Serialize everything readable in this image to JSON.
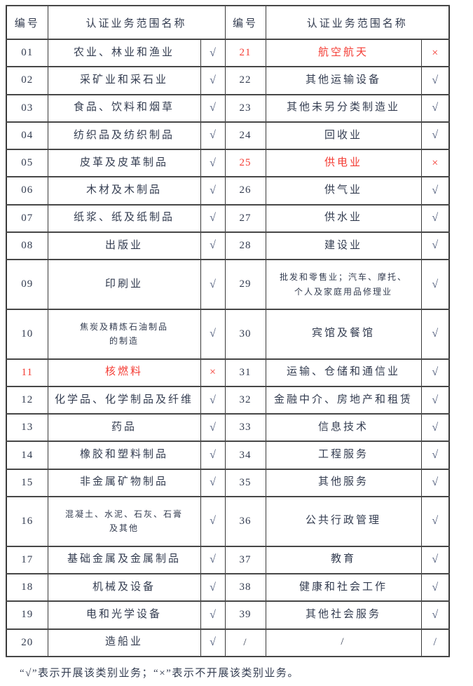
{
  "table": {
    "header": {
      "number": "编号",
      "scope": "认证业务范围名称"
    },
    "left_rows": [
      {
        "num": "01",
        "name": "农业、林业和渔业",
        "mark": "√",
        "red": false
      },
      {
        "num": "02",
        "name": "采矿业和采石业",
        "mark": "√",
        "red": false
      },
      {
        "num": "03",
        "name": "食品、饮料和烟草",
        "mark": "√",
        "red": false
      },
      {
        "num": "04",
        "name": "纺织品及纺织制品",
        "mark": "√",
        "red": false
      },
      {
        "num": "05",
        "name": "皮革及皮革制品",
        "mark": "√",
        "red": false
      },
      {
        "num": "06",
        "name": "木材及木制品",
        "mark": "√",
        "red": false
      },
      {
        "num": "07",
        "name": "纸浆、纸及纸制品",
        "mark": "√",
        "red": false
      },
      {
        "num": "08",
        "name": "出版业",
        "mark": "√",
        "red": false
      },
      {
        "num": "09",
        "name": "印刷业",
        "mark": "√",
        "red": false
      },
      {
        "num": "10",
        "name": "焦炭及精炼石油制品\n的制造",
        "mark": "√",
        "red": false
      },
      {
        "num": "11",
        "name": "核燃料",
        "mark": "×",
        "red": true
      },
      {
        "num": "12",
        "name": "化学品、化学制品及纤维",
        "mark": "√",
        "red": false
      },
      {
        "num": "13",
        "name": "药品",
        "mark": "√",
        "red": false
      },
      {
        "num": "14",
        "name": "橡胶和塑料制品",
        "mark": "√",
        "red": false
      },
      {
        "num": "15",
        "name": "非金属矿物制品",
        "mark": "√",
        "red": false
      },
      {
        "num": "16",
        "name": "混凝土、水泥、石灰、石膏\n及其他",
        "mark": "√",
        "red": false
      },
      {
        "num": "17",
        "name": "基础金属及金属制品",
        "mark": "√",
        "red": false
      },
      {
        "num": "18",
        "name": "机械及设备",
        "mark": "√",
        "red": false
      },
      {
        "num": "19",
        "name": "电和光学设备",
        "mark": "√",
        "red": false
      },
      {
        "num": "20",
        "name": "造船业",
        "mark": "√",
        "red": false
      }
    ],
    "right_rows": [
      {
        "num": "21",
        "name": "航空航天",
        "mark": "×",
        "red": true
      },
      {
        "num": "22",
        "name": "其他运输设备",
        "mark": "√",
        "red": false
      },
      {
        "num": "23",
        "name": "其他未另分类制造业",
        "mark": "√",
        "red": false
      },
      {
        "num": "24",
        "name": "回收业",
        "mark": "√",
        "red": false
      },
      {
        "num": "25",
        "name": "供电业",
        "mark": "×",
        "red": true
      },
      {
        "num": "26",
        "name": "供气业",
        "mark": "√",
        "red": false
      },
      {
        "num": "27",
        "name": "供水业",
        "mark": "√",
        "red": false
      },
      {
        "num": "28",
        "name": "建设业",
        "mark": "√",
        "red": false
      },
      {
        "num": "29",
        "name": "批发和零售业；汽车、摩托、\n个人及家庭用品修理业",
        "mark": "√",
        "red": false
      },
      {
        "num": "30",
        "name": "宾馆及餐馆",
        "mark": "√",
        "red": false
      },
      {
        "num": "31",
        "name": "运输、仓储和通信业",
        "mark": "√",
        "red": false
      },
      {
        "num": "32",
        "name": "金融中介、房地产和租赁",
        "mark": "√",
        "red": false
      },
      {
        "num": "33",
        "name": "信息技术",
        "mark": "√",
        "red": false
      },
      {
        "num": "34",
        "name": "工程服务",
        "mark": "√",
        "red": false
      },
      {
        "num": "35",
        "name": "其他服务",
        "mark": "√",
        "red": false
      },
      {
        "num": "36",
        "name": "公共行政管理",
        "mark": "√",
        "red": false
      },
      {
        "num": "37",
        "name": "教育",
        "mark": "√",
        "red": false
      },
      {
        "num": "38",
        "name": "健康和社会工作",
        "mark": "√",
        "red": false
      },
      {
        "num": "39",
        "name": "其他社会服务",
        "mark": "√",
        "red": false
      },
      {
        "num": "/",
        "name": "/",
        "mark": "/",
        "red": false
      }
    ]
  },
  "footnote": "“√”表示开展该类别业务；“×”表示不开展该类别业务。",
  "colors": {
    "text": "#333c50",
    "red_highlight": "#f43b33",
    "check_mark": "#4b5878",
    "border": "#3a3a3a"
  }
}
